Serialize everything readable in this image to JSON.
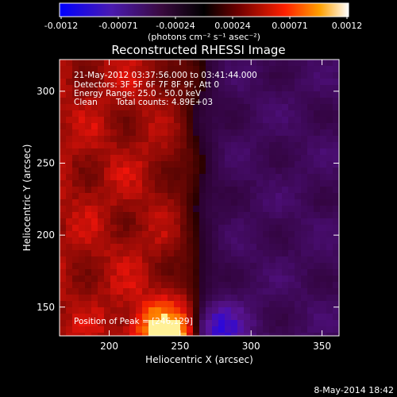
{
  "chart_data": {
    "type": "heatmap",
    "title": "Reconstructed RHESSI Image",
    "xlabel": "Heliocentric X (arcsec)",
    "ylabel": "Heliocentric Y (arcsec)",
    "xlim": [
      165,
      362
    ],
    "ylim": [
      130,
      322
    ],
    "x_ticks": [
      200,
      250,
      300,
      350
    ],
    "y_ticks": [
      150,
      200,
      250,
      300
    ],
    "colorbar": {
      "range": [
        -0.0012,
        0.0012
      ],
      "ticks": [
        "-0.0012",
        "-0.00071",
        "-0.00024",
        "0.00024",
        "0.00071",
        "0.0012"
      ],
      "unit_label": "(photons cm⁻² s⁻¹ asec⁻²)",
      "colors": [
        "#0000ff",
        "#5a1aa0",
        "#3a0a38",
        "#000000",
        "#800000",
        "#ff2000",
        "#ffa000",
        "#ffffff"
      ]
    },
    "annotations": {
      "time_range": "21-May-2012 03:37:56.000 to 03:41:44.000",
      "detectors": "Detectors: 3F 5F 6F 7F 8F 9F, Att 0",
      "energy": "Energy Range: 25.0 - 50.0 keV",
      "clean": "Clean",
      "counts": "Total counts: 4.89E+03",
      "peak": "Position of Peak = [246,129]"
    },
    "peak_position": [
      246,
      129
    ],
    "intensity_summary": {
      "positive_region": "left half (x < ~255), brightest near bottom x~246, y~130",
      "negative_region": "right half (x > ~265), strongest near bottom x~275, y~135"
    }
  },
  "footer_date": "8-May-2014 18:42"
}
